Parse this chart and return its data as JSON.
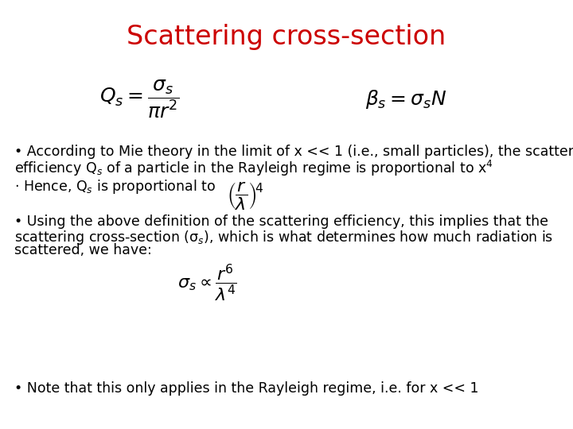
{
  "title": "Scattering cross-section",
  "title_color": "#CC0000",
  "title_fontsize": 24,
  "bg_color": "#FFFFFF",
  "eq1": "$Q_s = \\dfrac{\\sigma_s}{\\pi r^2}$",
  "eq2": "$\\beta_s = \\sigma_s N$",
  "bullet1_line1": "• According to Mie theory in the limit of x << 1 (i.e., small particles), the scattering",
  "bullet1_line2": "efficiency Q$_s$ of a particle in the Rayleigh regime is proportional to x$^4$",
  "bullet2_pre": "· Hence, Q$_s$ is proportional to",
  "eq3": "$\\left(\\dfrac{r}{\\lambda}\\right)^{\\!4}$",
  "bullet3_line1": "• Using the above definition of the scattering efficiency, this implies that the",
  "bullet3_line2": "scattering cross-section (σ$_s$), which is what determines how much radiation is",
  "bullet3_line3": "scattered, we have:",
  "eq4": "$\\sigma_s \\propto \\dfrac{r^6}{\\lambda^4}$",
  "bullet4": "• Note that this only applies in the Rayleigh regime, i.e. for x << 1",
  "text_color": "#000000",
  "text_fontsize": 12.5,
  "eq_fontsize_large": 18,
  "eq_fontsize_small": 16
}
